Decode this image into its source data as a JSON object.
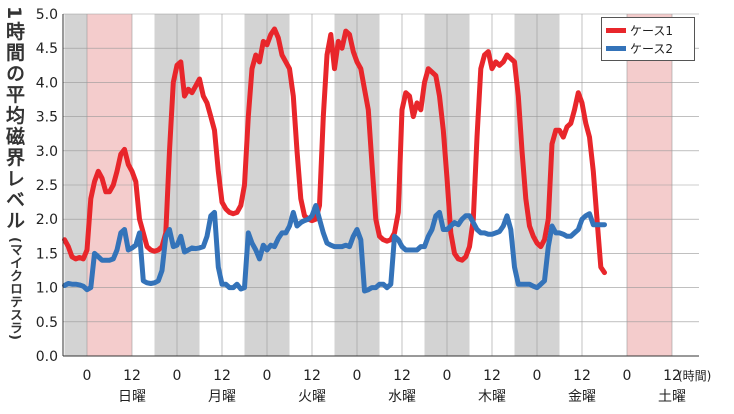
{
  "chart_data": {
    "type": "line",
    "ylabel": "1時間の平均磁界レベル",
    "yunit": "(マイクロテスラ)",
    "ylim": [
      0.0,
      5.0
    ],
    "yticks": [
      "0.0",
      "0.5",
      "1.0",
      "1.5",
      "2.0",
      "2.5",
      "3.0",
      "3.5",
      "4.0",
      "4.5",
      "5.0"
    ],
    "x_hour_unit": "(時間)",
    "days": [
      "日曜",
      "月曜",
      "火曜",
      "水曜",
      "木曜",
      "金曜",
      "土曜"
    ],
    "x_tick_labels": [
      "0",
      "12"
    ],
    "grid": true,
    "legend": "top-right",
    "shading": {
      "night_color": "#d3d3d3",
      "weekend_color": "#f4cccc",
      "weekend_days": [
        "日曜",
        "土曜"
      ]
    },
    "series": [
      {
        "name": "ケース1",
        "color": "#e8262b",
        "points": [
          [
            -6,
            1.7
          ],
          [
            -5,
            1.6
          ],
          [
            -4,
            1.45
          ],
          [
            -3,
            1.42
          ],
          [
            -2,
            1.44
          ],
          [
            -1,
            1.42
          ],
          [
            0,
            1.55
          ],
          [
            1,
            2.3
          ],
          [
            2,
            2.55
          ],
          [
            3,
            2.7
          ],
          [
            4,
            2.6
          ],
          [
            5,
            2.4
          ],
          [
            6,
            2.4
          ],
          [
            7,
            2.5
          ],
          [
            8,
            2.7
          ],
          [
            9,
            2.95
          ],
          [
            10,
            3.02
          ],
          [
            11,
            2.8
          ],
          [
            12,
            2.7
          ],
          [
            13,
            2.55
          ],
          [
            14,
            2.0
          ],
          [
            15,
            1.8
          ],
          [
            16,
            1.6
          ],
          [
            17,
            1.55
          ],
          [
            18,
            1.53
          ],
          [
            19,
            1.55
          ],
          [
            20,
            1.6
          ],
          [
            21,
            1.8
          ],
          [
            22,
            3.0
          ],
          [
            23,
            4.0
          ],
          [
            24,
            4.25
          ],
          [
            25,
            4.3
          ],
          [
            26,
            3.8
          ],
          [
            27,
            3.9
          ],
          [
            28,
            3.85
          ],
          [
            29,
            3.95
          ],
          [
            30,
            4.05
          ],
          [
            31,
            3.8
          ],
          [
            32,
            3.7
          ],
          [
            33,
            3.5
          ],
          [
            34,
            3.3
          ],
          [
            35,
            2.7
          ],
          [
            36,
            2.25
          ],
          [
            37,
            2.15
          ],
          [
            38,
            2.1
          ],
          [
            39,
            2.08
          ],
          [
            40,
            2.1
          ],
          [
            41,
            2.2
          ],
          [
            42,
            2.5
          ],
          [
            43,
            3.5
          ],
          [
            44,
            4.2
          ],
          [
            45,
            4.4
          ],
          [
            46,
            4.3
          ],
          [
            47,
            4.6
          ],
          [
            48,
            4.55
          ],
          [
            49,
            4.7
          ],
          [
            50,
            4.78
          ],
          [
            51,
            4.65
          ],
          [
            52,
            4.4
          ],
          [
            53,
            4.3
          ],
          [
            54,
            4.2
          ],
          [
            55,
            3.8
          ],
          [
            56,
            3.0
          ],
          [
            57,
            2.3
          ],
          [
            58,
            2.05
          ],
          [
            59,
            2.0
          ],
          [
            60,
            1.98
          ],
          [
            61,
            2.0
          ],
          [
            62,
            2.2
          ],
          [
            63,
            3.5
          ],
          [
            64,
            4.4
          ],
          [
            65,
            4.7
          ],
          [
            66,
            4.2
          ],
          [
            67,
            4.6
          ],
          [
            68,
            4.5
          ],
          [
            69,
            4.75
          ],
          [
            70,
            4.7
          ],
          [
            71,
            4.45
          ],
          [
            72,
            4.3
          ],
          [
            73,
            4.2
          ],
          [
            74,
            3.9
          ],
          [
            75,
            3.6
          ],
          [
            76,
            2.8
          ],
          [
            77,
            2.0
          ],
          [
            78,
            1.75
          ],
          [
            79,
            1.7
          ],
          [
            80,
            1.68
          ],
          [
            81,
            1.7
          ],
          [
            82,
            1.8
          ],
          [
            83,
            2.1
          ],
          [
            84,
            3.6
          ],
          [
            85,
            3.85
          ],
          [
            86,
            3.8
          ],
          [
            87,
            3.5
          ],
          [
            88,
            3.7
          ],
          [
            89,
            3.6
          ],
          [
            90,
            4.0
          ],
          [
            91,
            4.2
          ],
          [
            92,
            4.15
          ],
          [
            93,
            4.1
          ],
          [
            94,
            3.8
          ],
          [
            95,
            3.3
          ],
          [
            96,
            2.6
          ],
          [
            97,
            1.8
          ],
          [
            98,
            1.5
          ],
          [
            99,
            1.42
          ],
          [
            100,
            1.4
          ],
          [
            101,
            1.45
          ],
          [
            102,
            1.6
          ],
          [
            103,
            2.0
          ],
          [
            104,
            3.2
          ],
          [
            105,
            4.2
          ],
          [
            106,
            4.4
          ],
          [
            107,
            4.45
          ],
          [
            108,
            4.2
          ],
          [
            109,
            4.3
          ],
          [
            110,
            4.25
          ],
          [
            111,
            4.3
          ],
          [
            112,
            4.4
          ],
          [
            113,
            4.35
          ],
          [
            114,
            4.3
          ],
          [
            115,
            3.8
          ],
          [
            116,
            3.0
          ],
          [
            117,
            2.3
          ],
          [
            118,
            1.9
          ],
          [
            119,
            1.75
          ],
          [
            120,
            1.65
          ],
          [
            121,
            1.6
          ],
          [
            122,
            1.7
          ],
          [
            123,
            2.0
          ],
          [
            124,
            3.1
          ],
          [
            125,
            3.3
          ],
          [
            126,
            3.3
          ],
          [
            127,
            3.2
          ],
          [
            128,
            3.35
          ],
          [
            129,
            3.4
          ],
          [
            130,
            3.6
          ],
          [
            131,
            3.85
          ],
          [
            132,
            3.7
          ],
          [
            133,
            3.4
          ],
          [
            134,
            3.2
          ],
          [
            135,
            2.7
          ],
          [
            136,
            2.0
          ],
          [
            137,
            1.3
          ],
          [
            138,
            1.22
          ]
        ]
      },
      {
        "name": "ケース2",
        "color": "#3473b9",
        "points": [
          [
            -6,
            1.03
          ],
          [
            -5,
            1.06
          ],
          [
            -4,
            1.05
          ],
          [
            -3,
            1.05
          ],
          [
            -2,
            1.04
          ],
          [
            -1,
            1.02
          ],
          [
            0,
            0.97
          ],
          [
            1,
            1.0
          ],
          [
            2,
            1.5
          ],
          [
            3,
            1.45
          ],
          [
            4,
            1.4
          ],
          [
            5,
            1.4
          ],
          [
            6,
            1.4
          ],
          [
            7,
            1.42
          ],
          [
            8,
            1.55
          ],
          [
            9,
            1.8
          ],
          [
            10,
            1.85
          ],
          [
            11,
            1.55
          ],
          [
            12,
            1.58
          ],
          [
            13,
            1.62
          ],
          [
            14,
            1.8
          ],
          [
            15,
            1.1
          ],
          [
            16,
            1.07
          ],
          [
            17,
            1.06
          ],
          [
            18,
            1.07
          ],
          [
            19,
            1.1
          ],
          [
            20,
            1.25
          ],
          [
            21,
            1.75
          ],
          [
            22,
            1.85
          ],
          [
            23,
            1.6
          ],
          [
            24,
            1.62
          ],
          [
            25,
            1.75
          ],
          [
            26,
            1.52
          ],
          [
            27,
            1.55
          ],
          [
            28,
            1.58
          ],
          [
            29,
            1.57
          ],
          [
            30,
            1.58
          ],
          [
            31,
            1.6
          ],
          [
            32,
            1.75
          ],
          [
            33,
            2.05
          ],
          [
            34,
            2.1
          ],
          [
            35,
            1.3
          ],
          [
            36,
            1.05
          ],
          [
            37,
            1.05
          ],
          [
            38,
            1.0
          ],
          [
            39,
            1.0
          ],
          [
            40,
            1.05
          ],
          [
            41,
            0.98
          ],
          [
            42,
            1.0
          ],
          [
            43,
            1.8
          ],
          [
            44,
            1.65
          ],
          [
            45,
            1.55
          ],
          [
            46,
            1.42
          ],
          [
            47,
            1.62
          ],
          [
            48,
            1.55
          ],
          [
            49,
            1.62
          ],
          [
            50,
            1.6
          ],
          [
            51,
            1.72
          ],
          [
            52,
            1.8
          ],
          [
            53,
            1.8
          ],
          [
            54,
            1.9
          ],
          [
            55,
            2.1
          ],
          [
            56,
            1.9
          ],
          [
            57,
            1.95
          ],
          [
            58,
            1.98
          ],
          [
            59,
            2.0
          ],
          [
            60,
            2.05
          ],
          [
            61,
            2.2
          ],
          [
            62,
            2.0
          ],
          [
            63,
            1.8
          ],
          [
            64,
            1.65
          ],
          [
            65,
            1.62
          ],
          [
            66,
            1.6
          ],
          [
            67,
            1.6
          ],
          [
            68,
            1.6
          ],
          [
            69,
            1.62
          ],
          [
            70,
            1.6
          ],
          [
            71,
            1.75
          ],
          [
            72,
            1.85
          ],
          [
            73,
            1.7
          ],
          [
            74,
            0.95
          ],
          [
            75,
            0.97
          ],
          [
            76,
            1.0
          ],
          [
            77,
            1.0
          ],
          [
            78,
            1.05
          ],
          [
            79,
            1.05
          ],
          [
            80,
            1.0
          ],
          [
            81,
            1.05
          ],
          [
            82,
            1.75
          ],
          [
            83,
            1.7
          ],
          [
            84,
            1.6
          ],
          [
            85,
            1.55
          ],
          [
            86,
            1.55
          ],
          [
            87,
            1.55
          ],
          [
            88,
            1.55
          ],
          [
            89,
            1.6
          ],
          [
            90,
            1.6
          ],
          [
            91,
            1.75
          ],
          [
            92,
            1.85
          ],
          [
            93,
            2.05
          ],
          [
            94,
            2.1
          ],
          [
            95,
            1.85
          ],
          [
            96,
            1.85
          ],
          [
            97,
            1.9
          ],
          [
            98,
            1.95
          ],
          [
            99,
            1.92
          ],
          [
            100,
            2.0
          ],
          [
            101,
            2.05
          ],
          [
            102,
            2.05
          ],
          [
            103,
            1.95
          ],
          [
            104,
            1.85
          ],
          [
            105,
            1.8
          ],
          [
            106,
            1.8
          ],
          [
            107,
            1.78
          ],
          [
            108,
            1.78
          ],
          [
            109,
            1.8
          ],
          [
            110,
            1.82
          ],
          [
            111,
            1.9
          ],
          [
            112,
            2.05
          ],
          [
            113,
            1.85
          ],
          [
            114,
            1.3
          ],
          [
            115,
            1.05
          ],
          [
            116,
            1.05
          ],
          [
            117,
            1.05
          ],
          [
            118,
            1.05
          ],
          [
            119,
            1.02
          ],
          [
            120,
            1.0
          ],
          [
            121,
            1.05
          ],
          [
            122,
            1.1
          ],
          [
            123,
            1.6
          ],
          [
            124,
            1.9
          ],
          [
            125,
            1.8
          ],
          [
            126,
            1.8
          ],
          [
            127,
            1.78
          ],
          [
            128,
            1.75
          ],
          [
            129,
            1.75
          ],
          [
            130,
            1.8
          ],
          [
            131,
            1.85
          ],
          [
            132,
            2.0
          ],
          [
            133,
            2.05
          ],
          [
            134,
            2.08
          ],
          [
            135,
            1.92
          ],
          [
            136,
            1.92
          ],
          [
            137,
            1.92
          ],
          [
            138,
            1.92
          ]
        ]
      }
    ]
  }
}
